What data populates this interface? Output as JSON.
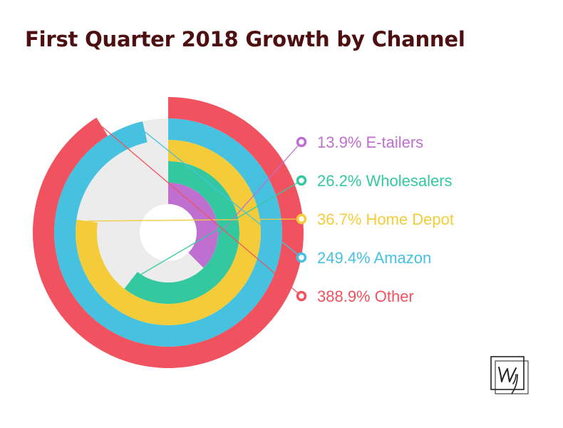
{
  "title": "First Quarter 2018 Growth by Channel",
  "colors": {
    "title": "#4d0f0f",
    "track": "#ececec",
    "hole": "#ffffff"
  },
  "chart_data": {
    "type": "radial bar",
    "value_unit": "%",
    "series": [
      {
        "name": "E-tailers",
        "value": 13.9,
        "label": "13.9% E-tailers",
        "color": "#bf6fd0"
      },
      {
        "name": "Wholesalers",
        "value": 26.2,
        "label": "26.2% Wholesalers",
        "color": "#34c8a0"
      },
      {
        "name": "Home Depot",
        "value": 36.7,
        "label": "36.7% Home Depot",
        "color": "#f4cc3a"
      },
      {
        "name": "Amazon",
        "value": 249.4,
        "label": "249.4% Amazon",
        "color": "#46c1e0"
      },
      {
        "name": "Other",
        "value": 388.9,
        "label": "388.9% Other",
        "color": "#f1525f"
      }
    ]
  },
  "logo": {
    "name": "Wy monogram logo",
    "text": "Wy"
  }
}
